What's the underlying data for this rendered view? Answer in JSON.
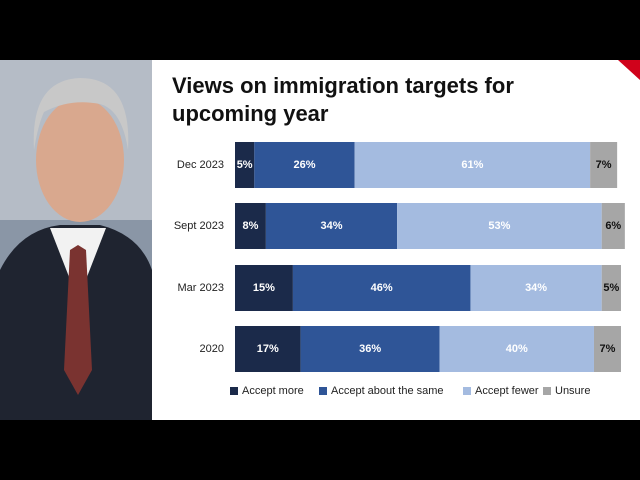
{
  "chart_data": {
    "type": "stacked-bar-horizontal",
    "title": "Views on immigration targets for upcoming year",
    "categories": [
      "Dec 2023",
      "Sept 2023",
      "Mar 2023",
      "2020"
    ],
    "xlim": [
      0,
      100
    ],
    "legend": "bottom",
    "series": [
      {
        "name": "Accept more",
        "color": "#1b2a4a",
        "values": [
          5,
          8,
          15,
          17
        ],
        "value_labels": [
          "5%",
          "8%",
          "15%",
          "17%"
        ]
      },
      {
        "name": "Accept about the same",
        "color": "#2f5597",
        "values": [
          26,
          34,
          46,
          36
        ],
        "value_labels": [
          "26%",
          "34%",
          "46%",
          "36%"
        ]
      },
      {
        "name": "Accept fewer",
        "color": "#a4bbe0",
        "values": [
          61,
          53,
          34,
          40
        ],
        "value_labels": [
          "61%",
          "53%",
          "34%",
          "40%"
        ]
      },
      {
        "name": "Unsure",
        "color": "#a6a6a6",
        "values": [
          7,
          6,
          5,
          7
        ],
        "value_labels": [
          "7%",
          "6%",
          "5%",
          "7%"
        ]
      }
    ]
  }
}
